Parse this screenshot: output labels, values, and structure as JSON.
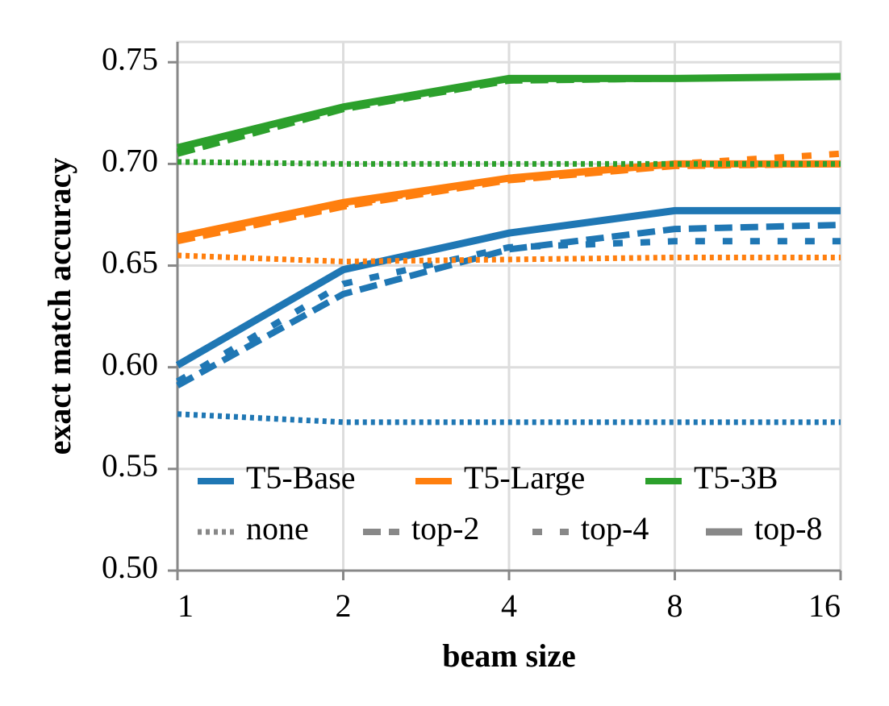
{
  "chart_data": {
    "type": "line",
    "x_label": "beam size",
    "y_label": "exact match accuracy",
    "x": [
      1,
      2,
      4,
      8,
      16
    ],
    "xlim": [
      1,
      16
    ],
    "xticks": [
      1,
      2,
      4,
      8,
      16
    ],
    "xscale": "log2",
    "ylim": [
      0.5,
      0.76
    ],
    "yticks": [
      {
        "value": 0.5,
        "label": "0.50"
      },
      0.55,
      {
        "value": 0.6,
        "label": "0.60"
      },
      0.65,
      {
        "value": 0.7,
        "label": "0.70"
      },
      0.75
    ],
    "grid": true,
    "line_styles": [
      {
        "name": "none",
        "dash": "dotted"
      },
      {
        "name": "top-2",
        "dash": "dashed"
      },
      {
        "name": "top-4",
        "dash": "sparse-dashed"
      },
      {
        "name": "top-8",
        "dash": "solid"
      }
    ],
    "series": [
      {
        "name": "T5-Base",
        "color": "#1f77b4",
        "values": [
          [
            0.577,
            0.573,
            0.573,
            0.573,
            0.573
          ],
          [
            0.591,
            0.636,
            0.658,
            0.668,
            0.67
          ],
          [
            0.593,
            0.641,
            0.659,
            0.662,
            0.662
          ],
          [
            0.601,
            0.648,
            0.666,
            0.677,
            0.677
          ]
        ]
      },
      {
        "name": "T5-Large",
        "color": "#ff7f0e",
        "values": [
          [
            0.655,
            0.652,
            0.653,
            0.654,
            0.654
          ],
          [
            0.662,
            0.679,
            0.692,
            0.699,
            0.7
          ],
          [
            0.663,
            0.68,
            0.693,
            0.7,
            0.705
          ],
          [
            0.664,
            0.681,
            0.693,
            0.7,
            0.7
          ]
        ]
      },
      {
        "name": "T5-3B",
        "color": "#2ca02c",
        "values": [
          [
            0.701,
            0.7,
            0.7,
            0.7,
            0.7
          ],
          [
            0.705,
            0.727,
            0.741,
            0.742,
            0.743
          ],
          [
            0.706,
            0.728,
            0.742,
            0.742,
            0.743
          ],
          [
            0.708,
            0.728,
            0.742,
            0.742,
            0.743
          ]
        ]
      }
    ]
  }
}
